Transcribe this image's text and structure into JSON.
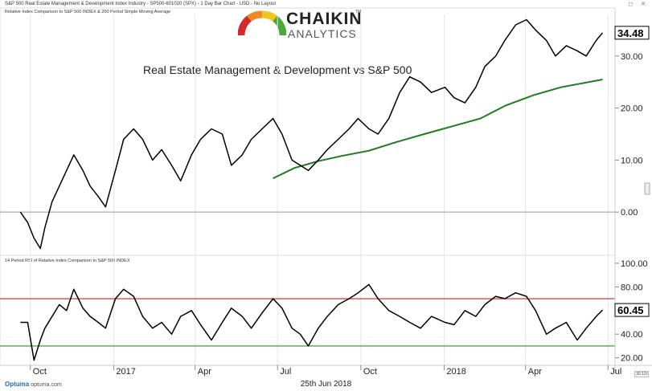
{
  "header": {
    "title": "S&P 500 Real Estate Management & Development Index Industry - SP500-601020 (SPX) - 1 Day Bar Chart - USD - No Layout",
    "window_controls": "◻ ✕"
  },
  "logo": {
    "word1": "CHAIKIN",
    "word2": "ANALYTICS",
    "tm": "TM"
  },
  "footer": {
    "date": "25th Jun 2018",
    "brand": "Optuma",
    "brand_url": "optuma.com",
    "zoom": "30.12I"
  },
  "colors": {
    "price_line": "#000000",
    "sma": "#1e7b1e",
    "rsi_upper": "#d62020",
    "rsi_lower": "#1e9a1e",
    "zero_line": "#999999",
    "grid": "#e6e6e6"
  },
  "chart_data": [
    {
      "type": "line",
      "title": "Relative Index Comparison to S&P 500 INDEX & 200 Period Simple Moving Average",
      "annotation": "Real Estate Management & Development vs S&P 500",
      "x_ticks": [
        "Oct",
        "2017",
        "Apr",
        "Jul",
        "Oct",
        "2018",
        "Apr",
        "Jul"
      ],
      "y_ticks": [
        "0.00",
        "10.00",
        "20.00",
        "30.00"
      ],
      "ylim": [
        -8,
        38
      ],
      "last_value_label": "34.48",
      "series": [
        {
          "role": "relative-index",
          "x": [
            "2016-09-20",
            "2016-09-28",
            "2016-10-05",
            "2016-10-12",
            "2016-10-17",
            "2016-10-25",
            "2016-11-02",
            "2016-11-10",
            "2016-11-18",
            "2016-11-28",
            "2016-12-06",
            "2016-12-15",
            "2016-12-23",
            "2017-01-03",
            "2017-01-12",
            "2017-01-23",
            "2017-02-02",
            "2017-02-13",
            "2017-02-23",
            "2017-03-06",
            "2017-03-16",
            "2017-03-28",
            "2017-04-07",
            "2017-04-19",
            "2017-05-01",
            "2017-05-11",
            "2017-05-23",
            "2017-06-02",
            "2017-06-14",
            "2017-06-26",
            "2017-07-06",
            "2017-07-17",
            "2017-07-26",
            "2017-08-04",
            "2017-08-15",
            "2017-08-25",
            "2017-09-06",
            "2017-09-18",
            "2017-09-28",
            "2017-10-10",
            "2017-10-20",
            "2017-11-01",
            "2017-11-13",
            "2017-11-24",
            "2017-12-06",
            "2017-12-18",
            "2018-01-02",
            "2018-01-12",
            "2018-01-24",
            "2018-02-05",
            "2018-02-15",
            "2018-02-27",
            "2018-03-09",
            "2018-03-21",
            "2018-04-02",
            "2018-04-12",
            "2018-04-24",
            "2018-05-04",
            "2018-05-16",
            "2018-05-28",
            "2018-06-07",
            "2018-06-18",
            "2018-06-25"
          ],
          "y": [
            0,
            -2,
            -5,
            -7,
            -3,
            2,
            5,
            8,
            11,
            8,
            5,
            3,
            1,
            8,
            14,
            16,
            14,
            10,
            12,
            9,
            6,
            11,
            14,
            16,
            15,
            9,
            11,
            14,
            16,
            18,
            15,
            10,
            9,
            8,
            10,
            12,
            14,
            16,
            18,
            16,
            15,
            18,
            23,
            26,
            25,
            23,
            24,
            22,
            21,
            24,
            28,
            30,
            33,
            36,
            37,
            35,
            33,
            30,
            32,
            31,
            30,
            33,
            34.48
          ]
        },
        {
          "role": "sma-200",
          "x": [
            "2017-06-26",
            "2017-07-20",
            "2017-08-15",
            "2017-09-10",
            "2017-10-10",
            "2017-11-10",
            "2017-12-10",
            "2018-01-10",
            "2018-02-10",
            "2018-03-10",
            "2018-04-10",
            "2018-05-10",
            "2018-06-25"
          ],
          "y": [
            6.5,
            8.5,
            9.8,
            10.8,
            11.8,
            13.5,
            15,
            16.5,
            18,
            20.5,
            22.5,
            24,
            25.5
          ]
        }
      ]
    },
    {
      "type": "line",
      "title": "14 Period RSI of Relative Index Comparison to S&P 500 INDEX",
      "y_ticks": [
        "20.00",
        "40.00",
        "60.00",
        "80.00",
        "100.00"
      ],
      "ylim": [
        15,
        104
      ],
      "upper_threshold": 70,
      "lower_threshold": 30,
      "last_value_label": "60.45",
      "series": [
        {
          "role": "rsi-14",
          "x": [
            "2016-09-20",
            "2016-09-28",
            "2016-10-05",
            "2016-10-12",
            "2016-10-17",
            "2016-10-25",
            "2016-11-02",
            "2016-11-10",
            "2016-11-18",
            "2016-11-28",
            "2016-12-06",
            "2016-12-15",
            "2016-12-23",
            "2017-01-03",
            "2017-01-12",
            "2017-01-23",
            "2017-02-02",
            "2017-02-13",
            "2017-02-23",
            "2017-03-06",
            "2017-03-16",
            "2017-03-28",
            "2017-04-07",
            "2017-04-19",
            "2017-05-01",
            "2017-05-11",
            "2017-05-23",
            "2017-06-02",
            "2017-06-14",
            "2017-06-26",
            "2017-07-06",
            "2017-07-17",
            "2017-07-26",
            "2017-08-04",
            "2017-08-15",
            "2017-08-25",
            "2017-09-06",
            "2017-09-18",
            "2017-09-28",
            "2017-10-10",
            "2017-10-20",
            "2017-11-01",
            "2017-11-13",
            "2017-11-24",
            "2017-12-06",
            "2017-12-18",
            "2018-01-02",
            "2018-01-12",
            "2018-01-24",
            "2018-02-05",
            "2018-02-15",
            "2018-02-27",
            "2018-03-09",
            "2018-03-21",
            "2018-04-02",
            "2018-04-12",
            "2018-04-24",
            "2018-05-04",
            "2018-05-16",
            "2018-05-28",
            "2018-06-07",
            "2018-06-18",
            "2018-06-25"
          ],
          "y": [
            50,
            50,
            18,
            35,
            45,
            55,
            65,
            60,
            78,
            62,
            55,
            50,
            45,
            70,
            78,
            72,
            55,
            45,
            50,
            40,
            55,
            60,
            48,
            35,
            50,
            62,
            55,
            45,
            58,
            70,
            62,
            45,
            40,
            30,
            45,
            55,
            65,
            70,
            75,
            82,
            70,
            60,
            55,
            50,
            45,
            55,
            50,
            48,
            60,
            55,
            65,
            72,
            70,
            75,
            72,
            60,
            40,
            45,
            50,
            35,
            45,
            55,
            60.45
          ]
        }
      ]
    }
  ]
}
